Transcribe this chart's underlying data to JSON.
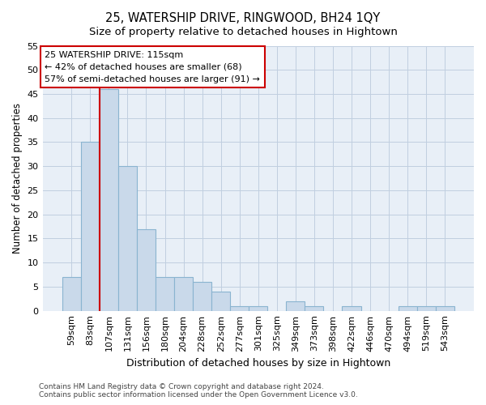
{
  "title": "25, WATERSHIP DRIVE, RINGWOOD, BH24 1QY",
  "subtitle": "Size of property relative to detached houses in Hightown",
  "xlabel": "Distribution of detached houses by size in Hightown",
  "ylabel": "Number of detached properties",
  "categories": [
    "59sqm",
    "83sqm",
    "107sqm",
    "131sqm",
    "156sqm",
    "180sqm",
    "204sqm",
    "228sqm",
    "252sqm",
    "277sqm",
    "301sqm",
    "325sqm",
    "349sqm",
    "373sqm",
    "398sqm",
    "422sqm",
    "446sqm",
    "470sqm",
    "494sqm",
    "519sqm",
    "543sqm"
  ],
  "values": [
    7,
    35,
    46,
    30,
    17,
    7,
    7,
    6,
    4,
    1,
    1,
    0,
    2,
    1,
    0,
    1,
    0,
    0,
    1,
    1,
    1
  ],
  "bar_color": "#c9d9ea",
  "bar_edge_color": "#8ab4d0",
  "vline_color": "#cc0000",
  "vline_index": 2,
  "annotation_text": "25 WATERSHIP DRIVE: 115sqm\n← 42% of detached houses are smaller (68)\n57% of semi-detached houses are larger (91) →",
  "annotation_box_color": "#ffffff",
  "annotation_box_edge_color": "#cc0000",
  "ylim": [
    0,
    55
  ],
  "yticks": [
    0,
    5,
    10,
    15,
    20,
    25,
    30,
    35,
    40,
    45,
    50,
    55
  ],
  "grid_color": "#c0cfe0",
  "background_color": "#e8eff7",
  "footer_text": "Contains HM Land Registry data © Crown copyright and database right 2024.\nContains public sector information licensed under the Open Government Licence v3.0.",
  "title_fontsize": 10.5,
  "subtitle_fontsize": 9.5,
  "xlabel_fontsize": 9,
  "ylabel_fontsize": 8.5,
  "tick_fontsize": 8,
  "annotation_fontsize": 8,
  "footer_fontsize": 6.5
}
